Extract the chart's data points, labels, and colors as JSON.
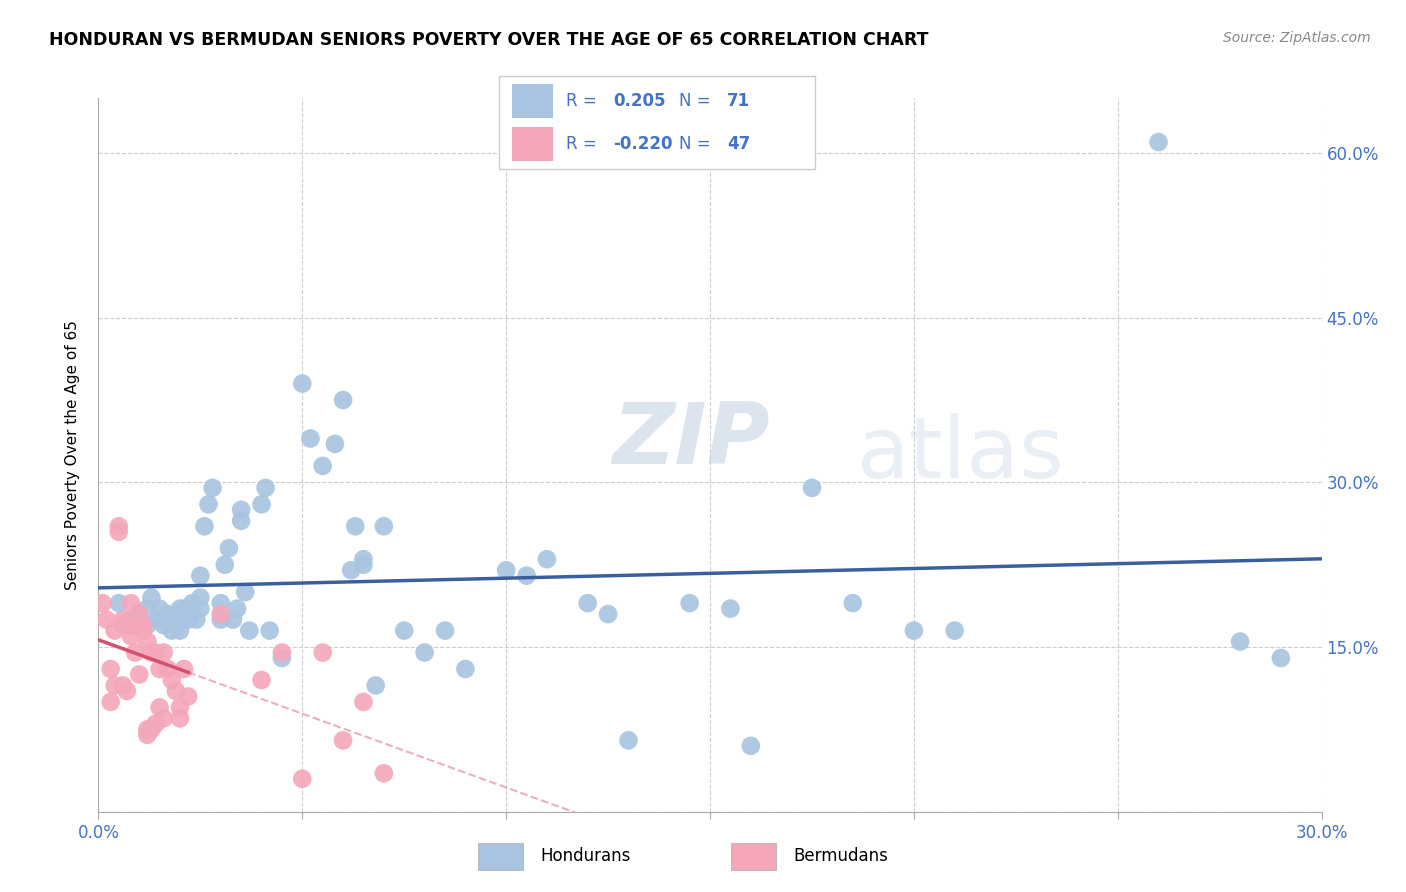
{
  "title": "HONDURAN VS BERMUDAN SENIORS POVERTY OVER THE AGE OF 65 CORRELATION CHART",
  "source": "Source: ZipAtlas.com",
  "ylabel": "Seniors Poverty Over the Age of 65",
  "xlim": [
    0.0,
    0.3
  ],
  "ylim": [
    0.0,
    0.65
  ],
  "x_ticks": [
    0.0,
    0.05,
    0.1,
    0.15,
    0.2,
    0.25,
    0.3
  ],
  "y_ticks": [
    0.0,
    0.15,
    0.3,
    0.45,
    0.6
  ],
  "y_tick_labels_right": [
    "",
    "15.0%",
    "30.0%",
    "45.0%",
    "60.0%"
  ],
  "hondurans_R": 0.205,
  "hondurans_N": 71,
  "bermudans_R": -0.22,
  "bermudans_N": 47,
  "honduran_color": "#a8c4e0",
  "bermudan_color": "#f4a7b9",
  "trend_blue": "#3a5fa0",
  "trend_pink": "#d45070",
  "watermark_zip": "ZIP",
  "watermark_atlas": "atlas",
  "hondurans_x": [
    0.005,
    0.008,
    0.01,
    0.012,
    0.012,
    0.013,
    0.015,
    0.015,
    0.016,
    0.017,
    0.018,
    0.018,
    0.019,
    0.02,
    0.02,
    0.021,
    0.021,
    0.022,
    0.023,
    0.024,
    0.025,
    0.025,
    0.025,
    0.026,
    0.027,
    0.028,
    0.03,
    0.03,
    0.031,
    0.032,
    0.033,
    0.034,
    0.035,
    0.035,
    0.036,
    0.037,
    0.04,
    0.041,
    0.042,
    0.045,
    0.05,
    0.052,
    0.055,
    0.058,
    0.06,
    0.062,
    0.063,
    0.065,
    0.065,
    0.068,
    0.07,
    0.075,
    0.08,
    0.085,
    0.09,
    0.1,
    0.105,
    0.11,
    0.12,
    0.125,
    0.13,
    0.145,
    0.155,
    0.16,
    0.175,
    0.185,
    0.2,
    0.21,
    0.26,
    0.28,
    0.29
  ],
  "hondurans_y": [
    0.19,
    0.175,
    0.18,
    0.17,
    0.185,
    0.195,
    0.175,
    0.185,
    0.17,
    0.18,
    0.165,
    0.175,
    0.17,
    0.165,
    0.185,
    0.175,
    0.185,
    0.175,
    0.19,
    0.175,
    0.185,
    0.195,
    0.215,
    0.26,
    0.28,
    0.295,
    0.175,
    0.19,
    0.225,
    0.24,
    0.175,
    0.185,
    0.265,
    0.275,
    0.2,
    0.165,
    0.28,
    0.295,
    0.165,
    0.14,
    0.39,
    0.34,
    0.315,
    0.335,
    0.375,
    0.22,
    0.26,
    0.225,
    0.23,
    0.115,
    0.26,
    0.165,
    0.145,
    0.165,
    0.13,
    0.22,
    0.215,
    0.23,
    0.19,
    0.18,
    0.065,
    0.19,
    0.185,
    0.06,
    0.295,
    0.19,
    0.165,
    0.165,
    0.61,
    0.155,
    0.14
  ],
  "bermudans_x": [
    0.001,
    0.002,
    0.003,
    0.003,
    0.004,
    0.004,
    0.005,
    0.005,
    0.006,
    0.006,
    0.006,
    0.007,
    0.007,
    0.008,
    0.008,
    0.009,
    0.009,
    0.01,
    0.01,
    0.011,
    0.011,
    0.012,
    0.012,
    0.012,
    0.013,
    0.013,
    0.014,
    0.014,
    0.015,
    0.015,
    0.016,
    0.016,
    0.017,
    0.018,
    0.019,
    0.02,
    0.02,
    0.021,
    0.022,
    0.03,
    0.04,
    0.045,
    0.05,
    0.055,
    0.06,
    0.065,
    0.07
  ],
  "bermudans_y": [
    0.19,
    0.175,
    0.13,
    0.1,
    0.165,
    0.115,
    0.26,
    0.255,
    0.175,
    0.17,
    0.115,
    0.17,
    0.11,
    0.19,
    0.16,
    0.17,
    0.145,
    0.18,
    0.125,
    0.17,
    0.165,
    0.155,
    0.075,
    0.07,
    0.145,
    0.075,
    0.145,
    0.08,
    0.13,
    0.095,
    0.145,
    0.085,
    0.13,
    0.12,
    0.11,
    0.085,
    0.095,
    0.13,
    0.105,
    0.18,
    0.12,
    0.145,
    0.03,
    0.145,
    0.065,
    0.1,
    0.035
  ]
}
